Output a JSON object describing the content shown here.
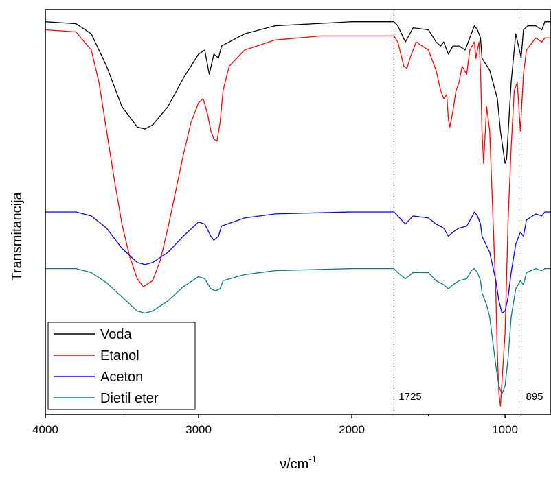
{
  "chart_data": {
    "type": "line",
    "title": "",
    "xlabel_base": "ν/cm",
    "xlabel_exp": "-1",
    "ylabel": "Transmitancija",
    "xlim": [
      4000,
      700
    ],
    "x_reversed": true,
    "x_ticks": [
      4000,
      3000,
      2000,
      1000
    ],
    "x_tick_labels": [
      "4000",
      "3000",
      "2000",
      "1000"
    ],
    "y_ticks_shown": false,
    "grid": false,
    "legend_position": "bottom-left",
    "annotations": [
      {
        "x": 1725,
        "label": "1725",
        "style": "dotted-vertical-line"
      },
      {
        "x": 895,
        "label": "895",
        "style": "dotted-vertical-line"
      }
    ],
    "series": [
      {
        "name": "Voda",
        "color": "#000000",
        "points": [
          [
            4000,
            97.0
          ],
          [
            3800,
            96.5
          ],
          [
            3700,
            94.0
          ],
          [
            3600,
            86.0
          ],
          [
            3500,
            76.0
          ],
          [
            3400,
            71.0
          ],
          [
            3350,
            70.5
          ],
          [
            3300,
            71.5
          ],
          [
            3200,
            76.0
          ],
          [
            3100,
            83.0
          ],
          [
            3000,
            89.0
          ],
          [
            2960,
            90.0
          ],
          [
            2930,
            84.0
          ],
          [
            2900,
            89.0
          ],
          [
            2870,
            88.0
          ],
          [
            2850,
            91.0
          ],
          [
            2700,
            94.0
          ],
          [
            2500,
            96.0
          ],
          [
            2000,
            97.0
          ],
          [
            1800,
            97.0
          ],
          [
            1725,
            97.0
          ],
          [
            1700,
            96.0
          ],
          [
            1650,
            92.0
          ],
          [
            1600,
            95.5
          ],
          [
            1500,
            95.0
          ],
          [
            1450,
            92.0
          ],
          [
            1420,
            91.0
          ],
          [
            1400,
            92.0
          ],
          [
            1370,
            89.0
          ],
          [
            1340,
            91.0
          ],
          [
            1300,
            91.0
          ],
          [
            1260,
            90.0
          ],
          [
            1220,
            94.0
          ],
          [
            1200,
            96.0
          ],
          [
            1180,
            95.0
          ],
          [
            1160,
            93.0
          ],
          [
            1150,
            88.0
          ],
          [
            1100,
            85.0
          ],
          [
            1050,
            78.0
          ],
          [
            1030,
            70.0
          ],
          [
            1000,
            62.0
          ],
          [
            990,
            63.0
          ],
          [
            960,
            82.0
          ],
          [
            930,
            94.0
          ],
          [
            900,
            89.0
          ],
          [
            895,
            88.0
          ],
          [
            880,
            95.0
          ],
          [
            850,
            96.0
          ],
          [
            800,
            96.0
          ],
          [
            760,
            95.0
          ],
          [
            740,
            97.0
          ],
          [
            700,
            97.0
          ]
        ]
      },
      {
        "name": "Etanol",
        "color": "#ff0000",
        "points": [
          [
            4000,
            95.0
          ],
          [
            3800,
            94.5
          ],
          [
            3700,
            90.0
          ],
          [
            3650,
            82.0
          ],
          [
            3600,
            70.0
          ],
          [
            3550,
            58.0
          ],
          [
            3500,
            47.0
          ],
          [
            3450,
            39.0
          ],
          [
            3400,
            33.5
          ],
          [
            3360,
            31.5
          ],
          [
            3300,
            33.0
          ],
          [
            3250,
            38.0
          ],
          [
            3200,
            46.0
          ],
          [
            3150,
            55.0
          ],
          [
            3100,
            64.0
          ],
          [
            3050,
            72.0
          ],
          [
            3000,
            77.0
          ],
          [
            2970,
            78.0
          ],
          [
            2940,
            74.0
          ],
          [
            2920,
            70.0
          ],
          [
            2900,
            68.0
          ],
          [
            2880,
            67.5
          ],
          [
            2860,
            72.0
          ],
          [
            2840,
            80.0
          ],
          [
            2800,
            86.0
          ],
          [
            2700,
            90.0
          ],
          [
            2500,
            92.5
          ],
          [
            2200,
            93.5
          ],
          [
            2000,
            93.5
          ],
          [
            1800,
            93.5
          ],
          [
            1725,
            93.5
          ],
          [
            1700,
            92.0
          ],
          [
            1660,
            86.0
          ],
          [
            1640,
            85.5
          ],
          [
            1620,
            88.0
          ],
          [
            1580,
            92.0
          ],
          [
            1500,
            90.0
          ],
          [
            1450,
            85.0
          ],
          [
            1420,
            80.0
          ],
          [
            1400,
            78.0
          ],
          [
            1380,
            79.0
          ],
          [
            1370,
            73.0
          ],
          [
            1360,
            71.0
          ],
          [
            1340,
            75.0
          ],
          [
            1320,
            80.0
          ],
          [
            1300,
            82.0
          ],
          [
            1280,
            86.0
          ],
          [
            1250,
            84.0
          ],
          [
            1230,
            90.0
          ],
          [
            1200,
            92.0
          ],
          [
            1190,
            88.0
          ],
          [
            1170,
            92.0
          ],
          [
            1160,
            85.0
          ],
          [
            1150,
            70.0
          ],
          [
            1140,
            62.0
          ],
          [
            1120,
            76.0
          ],
          [
            1100,
            70.0
          ],
          [
            1080,
            50.0
          ],
          [
            1060,
            30.0
          ],
          [
            1050,
            15.0
          ],
          [
            1040,
            5.0
          ],
          [
            1030,
            2.0
          ],
          [
            1020,
            8.0
          ],
          [
            1000,
            20.0
          ],
          [
            980,
            48.0
          ],
          [
            960,
            66.0
          ],
          [
            940,
            80.0
          ],
          [
            920,
            82.0
          ],
          [
            900,
            70.0
          ],
          [
            880,
            84.0
          ],
          [
            860,
            90.0
          ],
          [
            800,
            93.0
          ],
          [
            760,
            92.0
          ],
          [
            740,
            93.0
          ],
          [
            700,
            93.0
          ]
        ]
      },
      {
        "name": "Aceton",
        "color": "#0000ff",
        "points": [
          [
            4000,
            50.0
          ],
          [
            3800,
            50.0
          ],
          [
            3700,
            49.0
          ],
          [
            3600,
            46.0
          ],
          [
            3500,
            41.0
          ],
          [
            3400,
            37.5
          ],
          [
            3350,
            37.0
          ],
          [
            3300,
            37.5
          ],
          [
            3200,
            40.0
          ],
          [
            3100,
            44.0
          ],
          [
            3000,
            47.5
          ],
          [
            2960,
            47.0
          ],
          [
            2920,
            44.0
          ],
          [
            2900,
            43.0
          ],
          [
            2870,
            44.0
          ],
          [
            2850,
            46.5
          ],
          [
            2700,
            48.5
          ],
          [
            2500,
            49.5
          ],
          [
            2000,
            50.0
          ],
          [
            1800,
            50.0
          ],
          [
            1725,
            50.0
          ],
          [
            1700,
            49.0
          ],
          [
            1650,
            47.0
          ],
          [
            1600,
            49.0
          ],
          [
            1500,
            48.5
          ],
          [
            1450,
            47.0
          ],
          [
            1400,
            46.0
          ],
          [
            1370,
            44.0
          ],
          [
            1340,
            45.0
          ],
          [
            1300,
            46.0
          ],
          [
            1250,
            46.5
          ],
          [
            1220,
            48.5
          ],
          [
            1200,
            50.0
          ],
          [
            1180,
            49.0
          ],
          [
            1160,
            47.0
          ],
          [
            1150,
            44.0
          ],
          [
            1100,
            40.0
          ],
          [
            1060,
            33.0
          ],
          [
            1040,
            28.0
          ],
          [
            1020,
            25.0
          ],
          [
            1000,
            25.5
          ],
          [
            980,
            29.0
          ],
          [
            960,
            35.0
          ],
          [
            930,
            42.0
          ],
          [
            900,
            45.0
          ],
          [
            880,
            44.0
          ],
          [
            860,
            48.0
          ],
          [
            800,
            49.5
          ],
          [
            760,
            49.0
          ],
          [
            740,
            50.0
          ],
          [
            700,
            50.0
          ]
        ]
      },
      {
        "name": "Dietil eter",
        "color": "#008080",
        "points": [
          [
            4000,
            36.0
          ],
          [
            3800,
            36.0
          ],
          [
            3700,
            35.0
          ],
          [
            3600,
            32.5
          ],
          [
            3500,
            29.0
          ],
          [
            3400,
            25.5
          ],
          [
            3350,
            25.0
          ],
          [
            3300,
            25.5
          ],
          [
            3200,
            28.0
          ],
          [
            3100,
            31.5
          ],
          [
            3000,
            34.0
          ],
          [
            2960,
            33.5
          ],
          [
            2920,
            31.0
          ],
          [
            2890,
            30.5
          ],
          [
            2860,
            31.0
          ],
          [
            2840,
            33.0
          ],
          [
            2700,
            34.5
          ],
          [
            2500,
            35.5
          ],
          [
            2000,
            36.0
          ],
          [
            1800,
            36.0
          ],
          [
            1725,
            36.0
          ],
          [
            1700,
            35.0
          ],
          [
            1650,
            33.5
          ],
          [
            1600,
            35.0
          ],
          [
            1500,
            35.0
          ],
          [
            1450,
            33.0
          ],
          [
            1400,
            32.0
          ],
          [
            1370,
            31.0
          ],
          [
            1340,
            32.0
          ],
          [
            1300,
            33.0
          ],
          [
            1250,
            33.5
          ],
          [
            1220,
            35.5
          ],
          [
            1200,
            36.0
          ],
          [
            1180,
            35.0
          ],
          [
            1160,
            33.0
          ],
          [
            1150,
            30.0
          ],
          [
            1120,
            27.0
          ],
          [
            1100,
            24.0
          ],
          [
            1080,
            18.0
          ],
          [
            1060,
            12.0
          ],
          [
            1040,
            7.0
          ],
          [
            1020,
            5.0
          ],
          [
            1000,
            7.0
          ],
          [
            980,
            14.0
          ],
          [
            960,
            24.0
          ],
          [
            930,
            31.0
          ],
          [
            900,
            33.0
          ],
          [
            880,
            32.0
          ],
          [
            860,
            35.0
          ],
          [
            800,
            36.0
          ],
          [
            760,
            35.5
          ],
          [
            740,
            36.0
          ],
          [
            700,
            36.0
          ]
        ]
      }
    ]
  }
}
